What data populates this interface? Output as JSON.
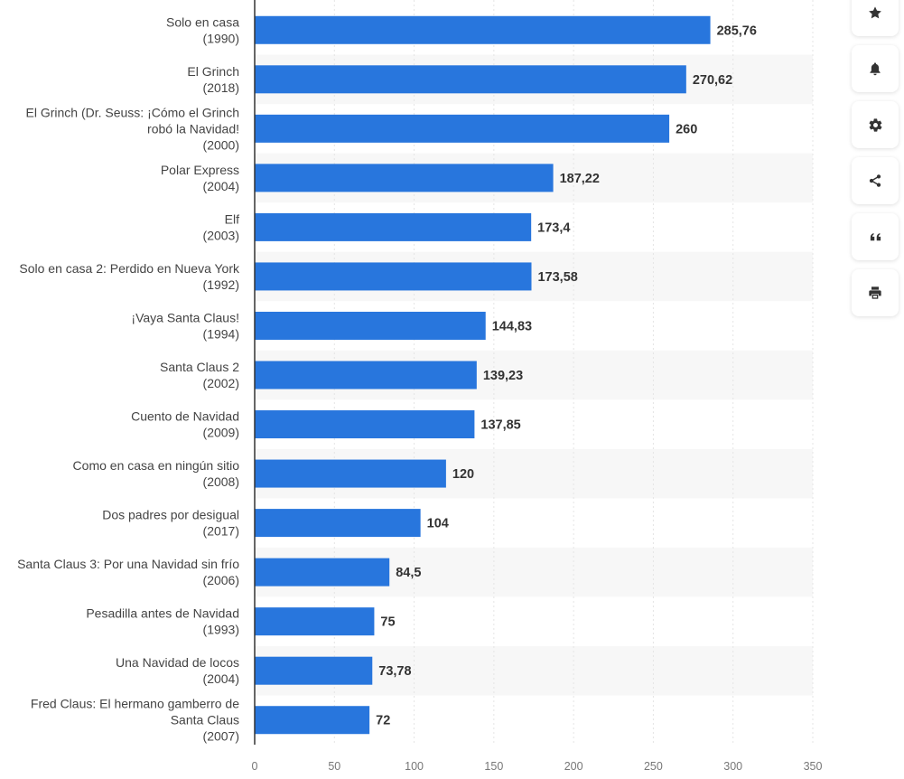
{
  "chart_data": {
    "type": "bar",
    "orientation": "horizontal",
    "categories": [
      [
        "Solo en casa",
        "(1990)"
      ],
      [
        "El Grinch",
        "(2018)"
      ],
      [
        "El Grinch (Dr. Seuss: ¡Cómo el Grinch",
        "robó la Navidad!",
        "(2000)"
      ],
      [
        "Polar Express",
        "(2004)"
      ],
      [
        "Elf",
        "(2003)"
      ],
      [
        "Solo en casa 2: Perdido en Nueva York",
        "(1992)"
      ],
      [
        "¡Vaya Santa Claus!",
        "(1994)"
      ],
      [
        "Santa Claus 2",
        "(2002)"
      ],
      [
        "Cuento de Navidad",
        "(2009)"
      ],
      [
        "Como en casa en ningún sitio",
        "(2008)"
      ],
      [
        "Dos padres por desigual",
        "(2017)"
      ],
      [
        "Santa Claus 3: Por una Navidad sin frío",
        "(2006)"
      ],
      [
        "Pesadilla antes de Navidad",
        "(1993)"
      ],
      [
        "Una Navidad de locos",
        "(2004)"
      ],
      [
        "Fred Claus: El hermano gamberro de",
        "Santa Claus",
        "(2007)"
      ]
    ],
    "values": [
      285.76,
      270.62,
      260,
      187.22,
      173.4,
      173.58,
      144.83,
      139.23,
      137.85,
      120,
      104,
      84.5,
      75,
      73.78,
      72
    ],
    "value_labels": [
      "285,76",
      "270,62",
      "260",
      "187,22",
      "173,4",
      "173,58",
      "144,83",
      "139,23",
      "137,85",
      "120",
      "104",
      "84,5",
      "75",
      "73,78",
      "72"
    ],
    "xlim": [
      0,
      350
    ],
    "xticks": [
      0,
      50,
      100,
      150,
      200,
      250,
      300,
      350
    ],
    "grid": true,
    "bar_color": "#2876dd",
    "stripe_color": "#f7f7f7",
    "grid_color": "#e5e5e5",
    "axis_color": "#333333"
  },
  "toolbar": {
    "buttons": [
      {
        "name": "star-icon"
      },
      {
        "name": "bell-icon"
      },
      {
        "name": "gear-icon"
      },
      {
        "name": "share-icon"
      },
      {
        "name": "quote-icon"
      },
      {
        "name": "print-icon"
      }
    ]
  }
}
